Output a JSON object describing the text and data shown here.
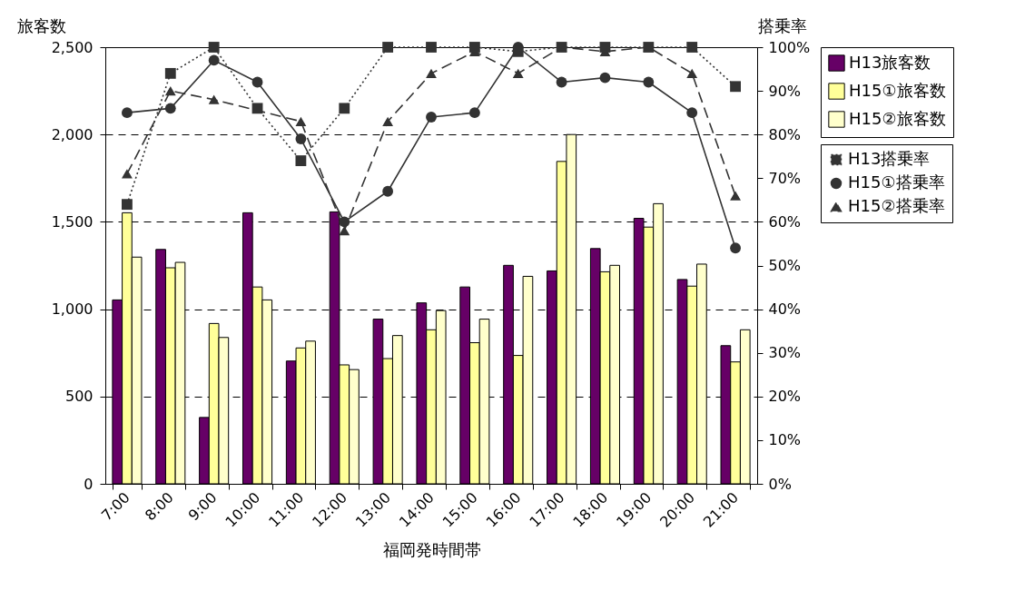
{
  "chart_data": {
    "type": "bar",
    "xlabel": "福岡発時間帯",
    "ylabel": "旅客数",
    "y2label": "搭乗率",
    "categories": [
      "7:00",
      "8:00",
      "9:00",
      "10:00",
      "11:00",
      "12:00",
      "13:00",
      "14:00",
      "15:00",
      "16:00",
      "17:00",
      "18:00",
      "19:00",
      "20:00",
      "21:00"
    ],
    "series": [
      {
        "name": "H13旅客数",
        "color": "#660066",
        "values": [
          1053,
          1342,
          380,
          1552,
          703,
          1557,
          943,
          1036,
          1127,
          1251,
          1219,
          1347,
          1520,
          1170,
          791
        ]
      },
      {
        "name": "H15①旅客数",
        "color": "#ffff99",
        "values": [
          1552,
          1237,
          918,
          1127,
          778,
          681,
          717,
          882,
          808,
          735,
          1846,
          1214,
          1470,
          1132,
          698
        ]
      },
      {
        "name": "H15②旅客数",
        "color": "#ffffcc",
        "values": [
          1298,
          1268,
          838,
          1053,
          817,
          654,
          849,
          992,
          943,
          1188,
          2000,
          1251,
          1604,
          1258,
          882
        ]
      },
      {
        "name": "H13搭乗率",
        "type": "line",
        "axis": "y2",
        "color": "#333333",
        "marker": "square",
        "line_style": "dotted",
        "values": [
          64,
          94,
          100,
          86,
          74,
          86,
          100,
          100,
          100,
          99,
          100,
          100,
          100,
          100,
          91
        ]
      },
      {
        "name": "H15①搭乗率",
        "type": "line",
        "axis": "y2",
        "color": "#333333",
        "marker": "circle",
        "line_style": "solid",
        "values": [
          85,
          86,
          97,
          92,
          79,
          60,
          67,
          84,
          85,
          100,
          92,
          93,
          92,
          85,
          54
        ]
      },
      {
        "name": "H15②搭乗率",
        "type": "line",
        "axis": "y2",
        "color": "#333333",
        "marker": "triangle",
        "line_style": "dashed",
        "values": [
          71,
          90,
          88,
          null,
          83,
          58,
          83,
          94,
          99,
          94,
          100,
          99,
          100,
          94,
          66
        ]
      }
    ],
    "ylim": [
      0,
      2500
    ],
    "yticks": [
      0,
      500,
      {
        "value": 1000,
        "label": "1,000"
      },
      {
        "value": 1500,
        "label": "1,500"
      },
      {
        "value": 2000,
        "label": "2,000"
      },
      {
        "value": 2500,
        "label": "2,500"
      }
    ],
    "y2lim": [
      0,
      100
    ],
    "y2ticks": [
      {
        "value": 0,
        "label": "0%"
      },
      {
        "value": 10,
        "label": "10%"
      },
      {
        "value": 20,
        "label": "20%"
      },
      {
        "value": 30,
        "label": "30%"
      },
      {
        "value": 40,
        "label": "40%"
      },
      {
        "value": 50,
        "label": "50%"
      },
      {
        "value": 60,
        "label": "60%"
      },
      {
        "value": 70,
        "label": "70%"
      },
      {
        "value": 80,
        "label": "80%"
      },
      {
        "value": 90,
        "label": "90%"
      },
      {
        "value": 100,
        "label": "100%"
      }
    ],
    "grid": "y",
    "legend": "right"
  }
}
